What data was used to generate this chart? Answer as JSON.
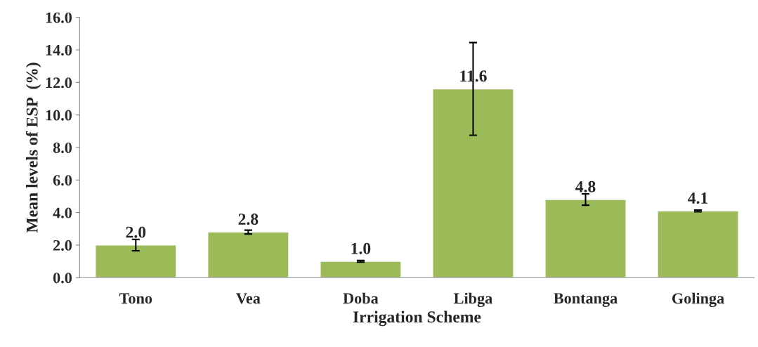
{
  "chart_data": {
    "type": "bar",
    "xlabel": "Irrigation Scheme",
    "ylabel": "Mean levels of ESP  (%)",
    "categories": [
      "Tono",
      "Vea",
      "Doba",
      "Libga",
      "Bontanga",
      "Golinga"
    ],
    "values": [
      2.0,
      2.8,
      1.0,
      11.6,
      4.8,
      4.1
    ],
    "errors": [
      0.35,
      0.12,
      0.05,
      2.85,
      0.35,
      0.05
    ],
    "value_labels": [
      "2.0",
      "2.8",
      "1.0",
      "11.6",
      "4.8",
      "4.1"
    ],
    "color": "#9bbb59",
    "ylim": [
      0,
      16
    ],
    "yticks": [
      {
        "value": 0,
        "label": "0.0"
      },
      {
        "value": 2,
        "label": "2.0"
      },
      {
        "value": 4,
        "label": "4.0"
      },
      {
        "value": 6,
        "label": "6.0"
      },
      {
        "value": 8,
        "label": "8.0"
      },
      {
        "value": 10,
        "label": "10.0"
      },
      {
        "value": 12,
        "label": "12.0"
      },
      {
        "value": 14,
        "label": "14.0"
      },
      {
        "value": 16,
        "label": "16.0"
      }
    ],
    "grid": false,
    "legend": false
  }
}
